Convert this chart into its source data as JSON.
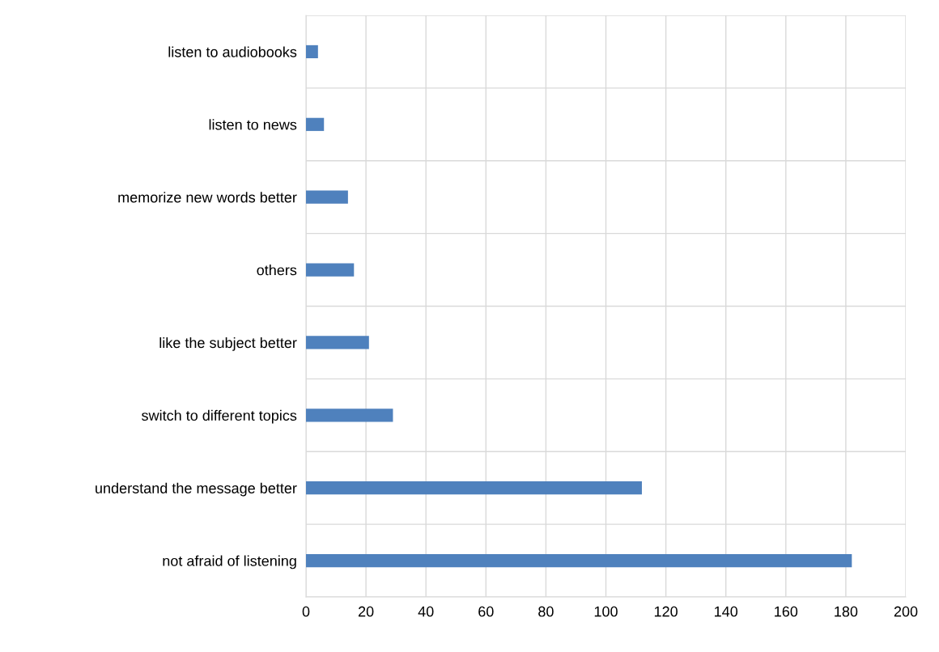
{
  "chart_data": {
    "type": "bar",
    "orientation": "horizontal",
    "categories": [
      "listen to audiobooks",
      "listen to news",
      "memorize new words better",
      "others",
      "like the subject better",
      "switch to different topics",
      "understand the message better",
      "not afraid of listening"
    ],
    "values": [
      4,
      6,
      14,
      16,
      21,
      29,
      112,
      182
    ],
    "color": "#4f81bd",
    "xlim": [
      0,
      200
    ],
    "xticks": [
      0,
      20,
      40,
      60,
      80,
      100,
      120,
      140,
      160,
      180,
      200
    ],
    "grid": true
  }
}
